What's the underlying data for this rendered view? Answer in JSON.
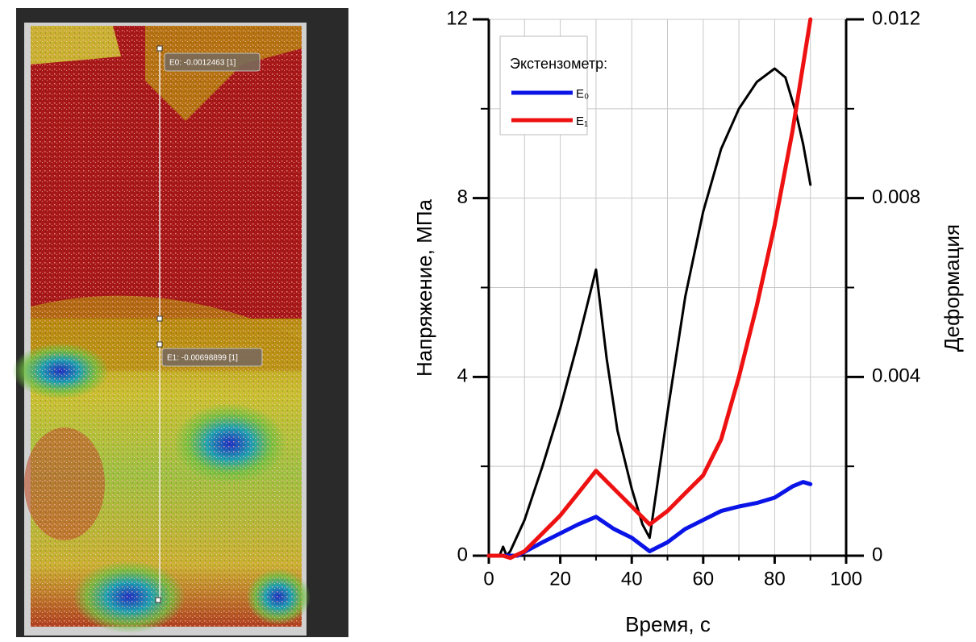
{
  "image": {
    "extensometers": [
      {
        "label": "E0: -0.0012463 [1]"
      },
      {
        "label": "E1: -0.00698899 [1]"
      }
    ]
  },
  "chart_data": {
    "type": "line",
    "xlabel": "Время, с",
    "ylabel": "Напряжение, МПа",
    "y2label": "Деформация",
    "legend_title": "Экстензометр:",
    "legend": "upper left",
    "grid": true,
    "xlim": [
      0,
      100
    ],
    "xticks": [
      0,
      20,
      40,
      60,
      80,
      100
    ],
    "xminor": [
      10,
      30,
      50,
      70,
      90
    ],
    "ylim": [
      0,
      12
    ],
    "yticks": [
      0,
      4,
      8,
      12
    ],
    "yminor": [
      2,
      6,
      10
    ],
    "y2lim": [
      0,
      0.012
    ],
    "y2ticks": [
      0,
      0.004,
      0.008,
      0.012
    ],
    "y2minor": [
      0.002,
      0.006,
      0.01
    ],
    "series": [
      {
        "color": "#000000",
        "width": 3,
        "x": [
          0,
          3,
          4,
          5,
          6,
          10,
          15,
          20,
          25,
          30,
          33,
          36,
          40,
          43,
          45,
          47,
          50,
          55,
          60,
          65,
          70,
          75,
          80,
          83,
          86,
          88,
          90
        ],
        "values": [
          0,
          0,
          0.2,
          0,
          0.1,
          0.8,
          2.0,
          3.3,
          4.8,
          6.4,
          4.4,
          2.8,
          1.5,
          0.7,
          0.4,
          1.5,
          3.2,
          5.8,
          7.7,
          9.1,
          10.0,
          10.6,
          10.9,
          10.7,
          9.9,
          9.2,
          8.3
        ]
      },
      {
        "name": "E₀",
        "color": "#0a14e6",
        "width": 5,
        "axis": "y2",
        "x": [
          0,
          5,
          8,
          15,
          20,
          25,
          30,
          35,
          40,
          45,
          50,
          55,
          60,
          65,
          70,
          75,
          80,
          85,
          88,
          90
        ],
        "values": [
          0,
          0,
          0,
          0.0003,
          0.0005,
          0.0007,
          0.00087,
          0.0006,
          0.0004,
          0.0001,
          0.0003,
          0.0006,
          0.0008,
          0.001,
          0.0011,
          0.00118,
          0.0013,
          0.00155,
          0.00165,
          0.0016
        ]
      },
      {
        "name": "E₁",
        "color": "#ee1111",
        "width": 5,
        "axis": "y2",
        "x": [
          0,
          4,
          6,
          10,
          15,
          20,
          25,
          30,
          35,
          40,
          45,
          50,
          55,
          60,
          65,
          70,
          75,
          80,
          85,
          90
        ],
        "values": [
          0,
          0,
          -5e-05,
          0.0001,
          0.0005,
          0.0009,
          0.0014,
          0.0019,
          0.0015,
          0.0011,
          0.0007,
          0.001,
          0.0014,
          0.0018,
          0.0026,
          0.004,
          0.0056,
          0.0074,
          0.0095,
          0.012
        ]
      }
    ]
  }
}
